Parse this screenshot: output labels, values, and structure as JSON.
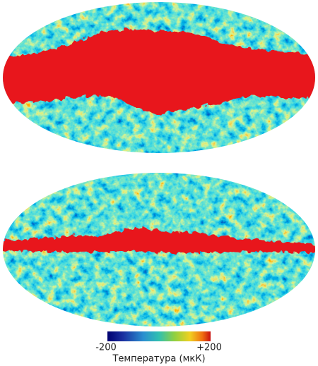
{
  "colorbar": {
    "min_label": "-200",
    "max_label": "+200",
    "title": "Температура (мкК)"
  }
}
